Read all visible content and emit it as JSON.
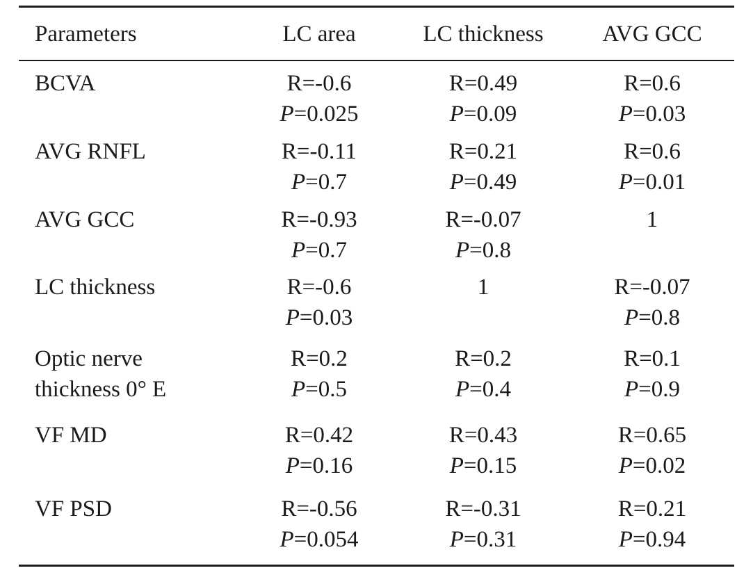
{
  "table": {
    "headers": [
      "Parameters",
      "LC area",
      "LC thickness",
      "AVG GCC"
    ],
    "rows": [
      {
        "param": [
          "BCVA"
        ],
        "cells": [
          {
            "r": "R=-0.6",
            "p": "=0.025"
          },
          {
            "r": "R=0.49",
            "p": "=0.09"
          },
          {
            "r": "R=0.6",
            "p": "=0.03"
          }
        ]
      },
      {
        "param": [
          "AVG RNFL"
        ],
        "cells": [
          {
            "r": "R=-0.11",
            "p": "=0.7"
          },
          {
            "r": "R=0.21",
            "p": "=0.49"
          },
          {
            "r": "R=0.6",
            "p": "=0.01"
          }
        ]
      },
      {
        "param": [
          "AVG GCC"
        ],
        "cells": [
          {
            "r": "R=-0.93",
            "p": "=0.7"
          },
          {
            "r": "R=-0.07",
            "p": "=0.8"
          },
          {
            "r": "1",
            "p": ""
          }
        ]
      },
      {
        "param": [
          "LC thickness"
        ],
        "cells": [
          {
            "r": "R=-0.6",
            "p": "=0.03"
          },
          {
            "r": "1",
            "p": ""
          },
          {
            "r": "R=-0.07",
            "p": "=0.8"
          }
        ]
      },
      {
        "param": [
          "Optic nerve",
          "thickness 0° E"
        ],
        "cells": [
          {
            "r": "R=0.2",
            "p": "=0.5"
          },
          {
            "r": "R=0.2",
            "p": "=0.4"
          },
          {
            "r": "R=0.1",
            "p": "=0.9"
          }
        ]
      },
      {
        "param": [
          "VF MD"
        ],
        "cells": [
          {
            "r": "R=0.42",
            "p": "=0.16"
          },
          {
            "r": "R=0.43",
            "p": "=0.15"
          },
          {
            "r": "R=0.65",
            "p": "=0.02"
          }
        ]
      },
      {
        "param": [
          "VF PSD"
        ],
        "cells": [
          {
            "r": "R=-0.56",
            "p": "=0.054"
          },
          {
            "r": "R=-0.31",
            "p": "=0.31"
          },
          {
            "r": "R=0.21",
            "p": "=0.94"
          }
        ]
      }
    ],
    "p_symbol": "P"
  }
}
